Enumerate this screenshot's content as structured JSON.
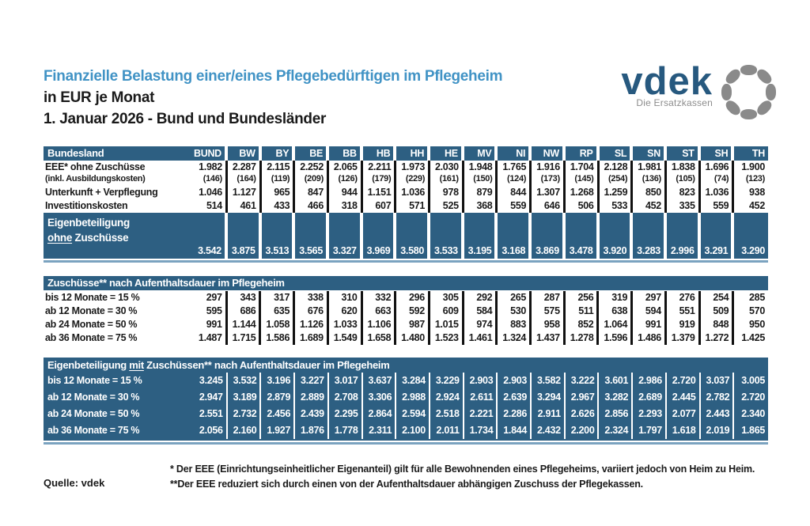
{
  "header": {
    "title": "Finanzielle Belastung einer/eines Pflegebedürftigen im Pflegeheim",
    "subtitle": "in EUR je Monat",
    "dateline": "1. Januar 2026 - Bund und Bundesländer"
  },
  "logo": {
    "word": "vdek",
    "tagline": "Die Ersatzkassen"
  },
  "colors": {
    "table_blue": "#2d5f82",
    "title_blue": "#4193c5",
    "logo_blue": "#27597f",
    "logo_gray": "#8a8a8a",
    "light_separator": "#7ba3c0"
  },
  "table": {
    "label_header": "Bundesland",
    "columns": [
      "BUND",
      "BW",
      "BY",
      "BE",
      "BB",
      "HB",
      "HH",
      "HE",
      "MV",
      "NI",
      "NW",
      "RP",
      "SL",
      "SN",
      "ST",
      "SH",
      "TH"
    ],
    "section1": {
      "rows": [
        {
          "label": "EEE* ohne Zuschüsse",
          "small": false,
          "values": [
            "1.982",
            "2.287",
            "2.115",
            "2.252",
            "2.065",
            "2.211",
            "1.973",
            "2.030",
            "1.948",
            "1.765",
            "1.916",
            "1.704",
            "2.128",
            "1.981",
            "1.838",
            "1.696",
            "1.900"
          ]
        },
        {
          "label": "(inkl. Ausbildungskosten)",
          "small": true,
          "values": [
            "(146)",
            "(164)",
            "(119)",
            "(209)",
            "(126)",
            "(179)",
            "(229)",
            "(161)",
            "(150)",
            "(124)",
            "(173)",
            "(145)",
            "(254)",
            "(136)",
            "(105)",
            "(74)",
            "(123)"
          ]
        },
        {
          "label": "Unterkunft + Verpflegung",
          "small": false,
          "values": [
            "1.046",
            "1.127",
            "965",
            "847",
            "944",
            "1.151",
            "1.036",
            "978",
            "879",
            "844",
            "1.307",
            "1.268",
            "1.259",
            "850",
            "823",
            "1.036",
            "938"
          ]
        },
        {
          "label": "Investitionskosten",
          "small": false,
          "values": [
            "514",
            "461",
            "433",
            "466",
            "318",
            "607",
            "571",
            "525",
            "368",
            "559",
            "646",
            "506",
            "533",
            "452",
            "335",
            "559",
            "452"
          ]
        }
      ],
      "total": {
        "label_line1": "Eigenbeteiligung",
        "label_line2_underlined": "ohne",
        "label_line2_rest": " Zuschüsse",
        "values": [
          "3.542",
          "3.875",
          "3.513",
          "3.565",
          "3.327",
          "3.969",
          "3.580",
          "3.533",
          "3.195",
          "3.168",
          "3.869",
          "3.478",
          "3.920",
          "3.283",
          "2.996",
          "3.291",
          "3.290"
        ]
      }
    },
    "section2": {
      "title": "Zuschüsse** nach Aufenthaltsdauer im Pflegeheim",
      "rows": [
        {
          "label": "bis 12 Monate = 15 %",
          "values": [
            "297",
            "343",
            "317",
            "338",
            "310",
            "332",
            "296",
            "305",
            "292",
            "265",
            "287",
            "256",
            "319",
            "297",
            "276",
            "254",
            "285"
          ]
        },
        {
          "label": "ab 12 Monate  = 30 %",
          "values": [
            "595",
            "686",
            "635",
            "676",
            "620",
            "663",
            "592",
            "609",
            "584",
            "530",
            "575",
            "511",
            "638",
            "594",
            "551",
            "509",
            "570"
          ]
        },
        {
          "label": "ab 24 Monate  = 50 %",
          "values": [
            "991",
            "1.144",
            "1.058",
            "1.126",
            "1.033",
            "1.106",
            "987",
            "1.015",
            "974",
            "883",
            "958",
            "852",
            "1.064",
            "991",
            "919",
            "848",
            "950"
          ]
        },
        {
          "label": "ab 36 Monate  = 75 %",
          "values": [
            "1.487",
            "1.715",
            "1.586",
            "1.689",
            "1.549",
            "1.658",
            "1.480",
            "1.523",
            "1.461",
            "1.324",
            "1.437",
            "1.278",
            "1.596",
            "1.486",
            "1.379",
            "1.272",
            "1.425"
          ]
        }
      ]
    },
    "section3": {
      "title_pre": "Eigenbeteiligung ",
      "title_underlined": "mit",
      "title_post": " Zuschüssen** nach Aufenthaltsdauer im Pflegeheim",
      "rows": [
        {
          "label": "bis 12 Monate = 15 %",
          "values": [
            "3.245",
            "3.532",
            "3.196",
            "3.227",
            "3.017",
            "3.637",
            "3.284",
            "3.229",
            "2.903",
            "2.903",
            "3.582",
            "3.222",
            "3.601",
            "2.986",
            "2.720",
            "3.037",
            "3.005"
          ]
        },
        {
          "label": "ab 12 Monate  = 30 %",
          "values": [
            "2.947",
            "3.189",
            "2.879",
            "2.889",
            "2.708",
            "3.306",
            "2.988",
            "2.924",
            "2.611",
            "2.639",
            "3.294",
            "2.967",
            "3.282",
            "2.689",
            "2.445",
            "2.782",
            "2.720"
          ]
        },
        {
          "label": "ab 24 Monate  = 50 %",
          "values": [
            "2.551",
            "2.732",
            "2.456",
            "2.439",
            "2.295",
            "2.864",
            "2.594",
            "2.518",
            "2.221",
            "2.286",
            "2.911",
            "2.626",
            "2.856",
            "2.293",
            "2.077",
            "2.443",
            "2.340"
          ]
        },
        {
          "label": "ab 36 Monate  = 75 %",
          "values": [
            "2.056",
            "2.160",
            "1.927",
            "1.876",
            "1.778",
            "2.311",
            "2.100",
            "2.011",
            "1.734",
            "1.844",
            "2.432",
            "2.200",
            "2.324",
            "1.797",
            "1.618",
            "2.019",
            "1.865"
          ]
        }
      ]
    }
  },
  "footer": {
    "source": "Quelle: vdek",
    "note1": "* Der EEE (Einrichtungseinheitlicher Eigenanteil) gilt für alle Bewohnenden eines Pflegeheims, variiert jedoch von Heim zu Heim.",
    "note2": "**Der EEE reduziert sich durch einen von der Aufenthaltsdauer abhängigen Zuschuss der Pflegekassen."
  }
}
